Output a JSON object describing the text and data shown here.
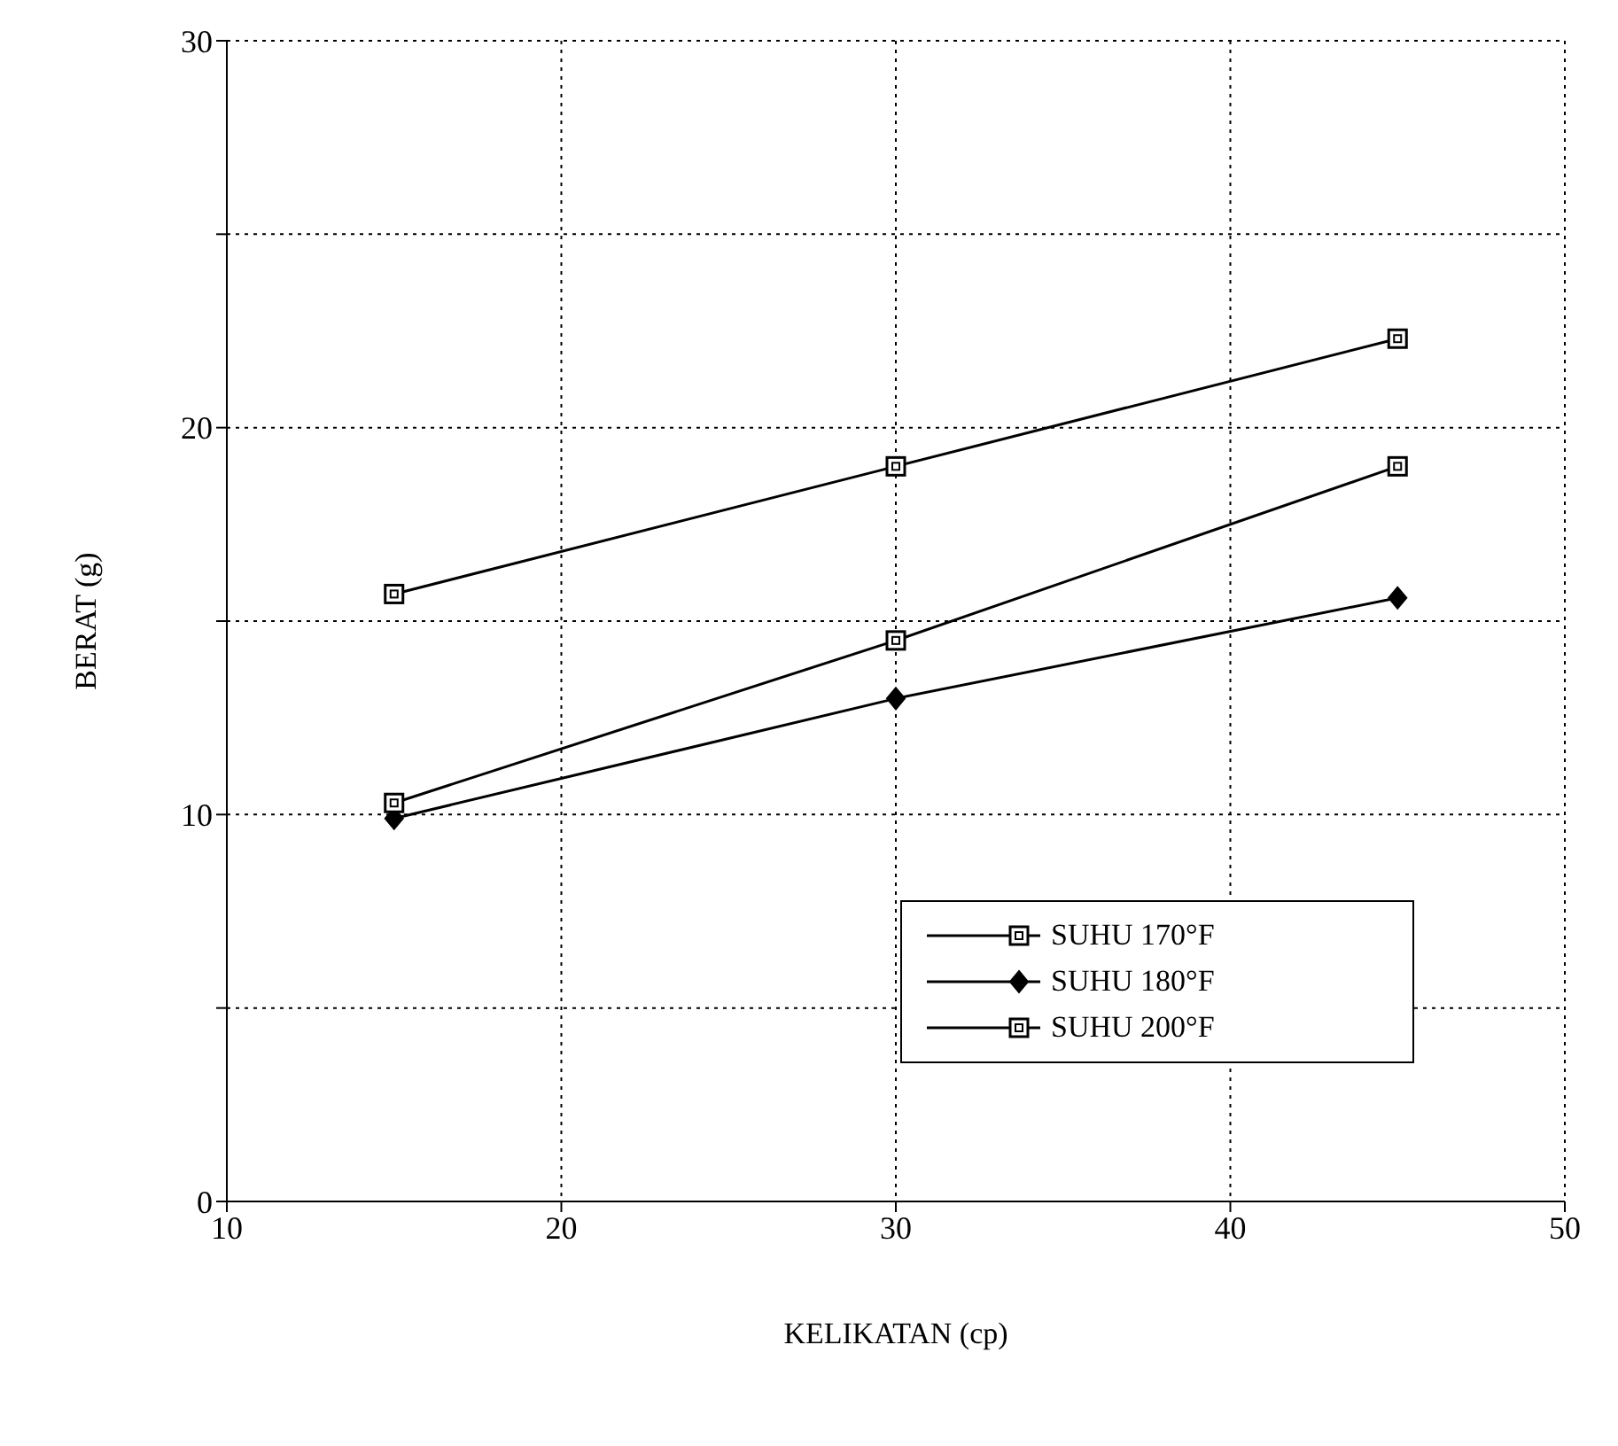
{
  "chart_data": {
    "type": "line",
    "xlabel": "KELIKATAN (cp)",
    "ylabel": "BERAT (g)",
    "xlim": [
      10,
      50
    ],
    "xticks": [
      10,
      20,
      30,
      40,
      50
    ],
    "ylim": [
      0,
      30
    ],
    "yticks": [
      0,
      {
        "value": 5,
        "label": null
      },
      10,
      {
        "value": 15,
        "label": null
      },
      20,
      {
        "value": 25,
        "label": null
      },
      30
    ],
    "grid": true,
    "legend": "bottom right",
    "line_style": "solid",
    "series": [
      {
        "name": "SUHU 170°F",
        "color": "#000000",
        "marker": "square",
        "x": [
          15,
          30,
          45
        ],
        "values": [
          15.7,
          19.0,
          22.3
        ]
      },
      {
        "name": "SUHU 180°F",
        "color": "#000000",
        "marker": "diamond",
        "x": [
          15,
          30,
          45
        ],
        "values": [
          9.9,
          13.0,
          15.6
        ]
      },
      {
        "name": "SUHU 200°F",
        "color": "#000000",
        "marker": "square",
        "x": [
          15,
          30,
          45
        ],
        "values": [
          10.3,
          14.5,
          19.0
        ]
      }
    ]
  }
}
